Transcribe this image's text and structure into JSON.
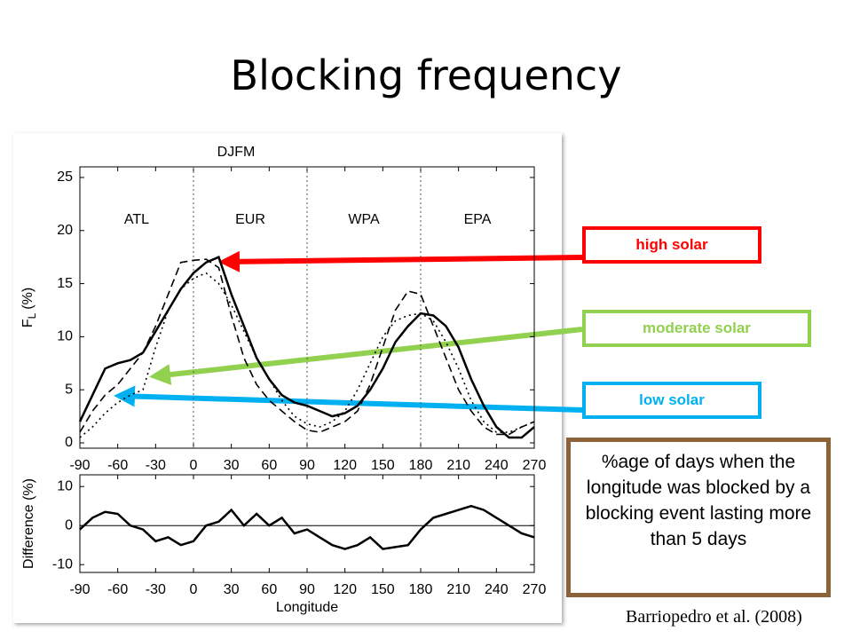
{
  "title": "Blocking frequency",
  "annotations": [
    {
      "text": "high solar",
      "color": "#ff0000"
    },
    {
      "text": "moderate solar",
      "color": "#92d050"
    },
    {
      "text": "low solar",
      "color": "#00b0f0"
    }
  ],
  "note": "%age of days when the longitude was blocked by a blocking event lasting more than 5 days",
  "citation": "Barriopedro et al. (2008)",
  "chart_data": [
    {
      "type": "line",
      "title": "DJFM",
      "ylabel": "F",
      "ylabel_subscript": "L",
      "ylabel_unit": "(%)",
      "regions": [
        "ATL",
        "EUR",
        "WPA",
        "EPA"
      ],
      "region_dividers": [
        0,
        90,
        180
      ],
      "xlim": [
        -90,
        270
      ],
      "xticks": [
        -90,
        -60,
        -30,
        0,
        30,
        60,
        90,
        120,
        150,
        180,
        210,
        240,
        270
      ],
      "ylim": [
        -0.5,
        26
      ],
      "yticks": [
        0,
        5,
        10,
        15,
        20,
        25
      ],
      "x": [
        -90,
        -80,
        -70,
        -60,
        -50,
        -40,
        -30,
        -20,
        -10,
        0,
        10,
        20,
        30,
        40,
        50,
        60,
        70,
        80,
        90,
        100,
        110,
        120,
        130,
        140,
        150,
        160,
        170,
        180,
        190,
        200,
        210,
        220,
        230,
        240,
        250,
        260,
        270
      ],
      "series": [
        {
          "name": "high solar",
          "color": "#000000",
          "dash": "solid",
          "values": [
            2,
            4.5,
            7,
            7.5,
            7.8,
            8.5,
            10.5,
            12.5,
            14.5,
            16,
            17,
            17.5,
            14,
            11,
            8,
            6,
            4.5,
            3.8,
            3.5,
            3,
            2.5,
            2.8,
            3.5,
            5,
            7,
            9.5,
            11,
            12.2,
            12,
            11,
            9,
            6,
            3.5,
            1.5,
            0.5,
            0.5,
            1.5
          ]
        },
        {
          "name": "moderate solar",
          "color": "#000000",
          "dash": "dotted",
          "values": [
            0.5,
            1.5,
            2.8,
            3.8,
            4.5,
            5,
            9,
            12.5,
            14.5,
            15.5,
            16,
            15,
            13,
            10.5,
            8,
            6,
            4,
            2.5,
            1.8,
            1.5,
            2,
            3,
            5,
            7.5,
            10,
            11.5,
            12,
            12.2,
            11.5,
            9.5,
            7,
            4,
            2,
            1,
            1,
            1.5,
            2
          ]
        },
        {
          "name": "low solar",
          "color": "#000000",
          "dash": "dashed",
          "values": [
            1,
            3,
            4.5,
            5.5,
            7,
            8.5,
            11,
            14,
            17,
            17.2,
            17.3,
            16.5,
            12,
            8,
            5.5,
            4,
            3,
            2,
            1.2,
            1,
            1.5,
            2,
            3,
            5.5,
            9,
            12.5,
            14.3,
            14,
            11,
            8,
            5,
            3,
            1.5,
            0.8,
            0.8,
            1.5,
            2
          ]
        }
      ]
    },
    {
      "type": "line",
      "xlabel": "Longitude",
      "ylabel": "Difference (%)",
      "xlim": [
        -90,
        270
      ],
      "xticks": [
        -90,
        -60,
        -30,
        0,
        30,
        60,
        90,
        120,
        150,
        180,
        210,
        240,
        270
      ],
      "ylim": [
        -12,
        13
      ],
      "yticks": [
        -10,
        0,
        10
      ],
      "zero_line": true,
      "x": [
        -90,
        -80,
        -70,
        -60,
        -50,
        -40,
        -30,
        -20,
        -10,
        0,
        10,
        20,
        30,
        40,
        50,
        60,
        70,
        80,
        90,
        100,
        110,
        120,
        130,
        140,
        150,
        160,
        170,
        180,
        190,
        200,
        210,
        220,
        230,
        240,
        250,
        260,
        270
      ],
      "series": [
        {
          "color": "#000000",
          "dash": "solid",
          "values": [
            -1,
            2,
            3.5,
            3,
            0,
            -1,
            -4,
            -3,
            -5,
            -4,
            0,
            1,
            4,
            0,
            3,
            0,
            2,
            -2,
            -1,
            -3,
            -5,
            -6,
            -5,
            -3,
            -6,
            -5.5,
            -5,
            -1,
            2,
            3,
            4,
            5,
            4,
            2,
            0,
            -2,
            -3
          ]
        }
      ]
    }
  ]
}
